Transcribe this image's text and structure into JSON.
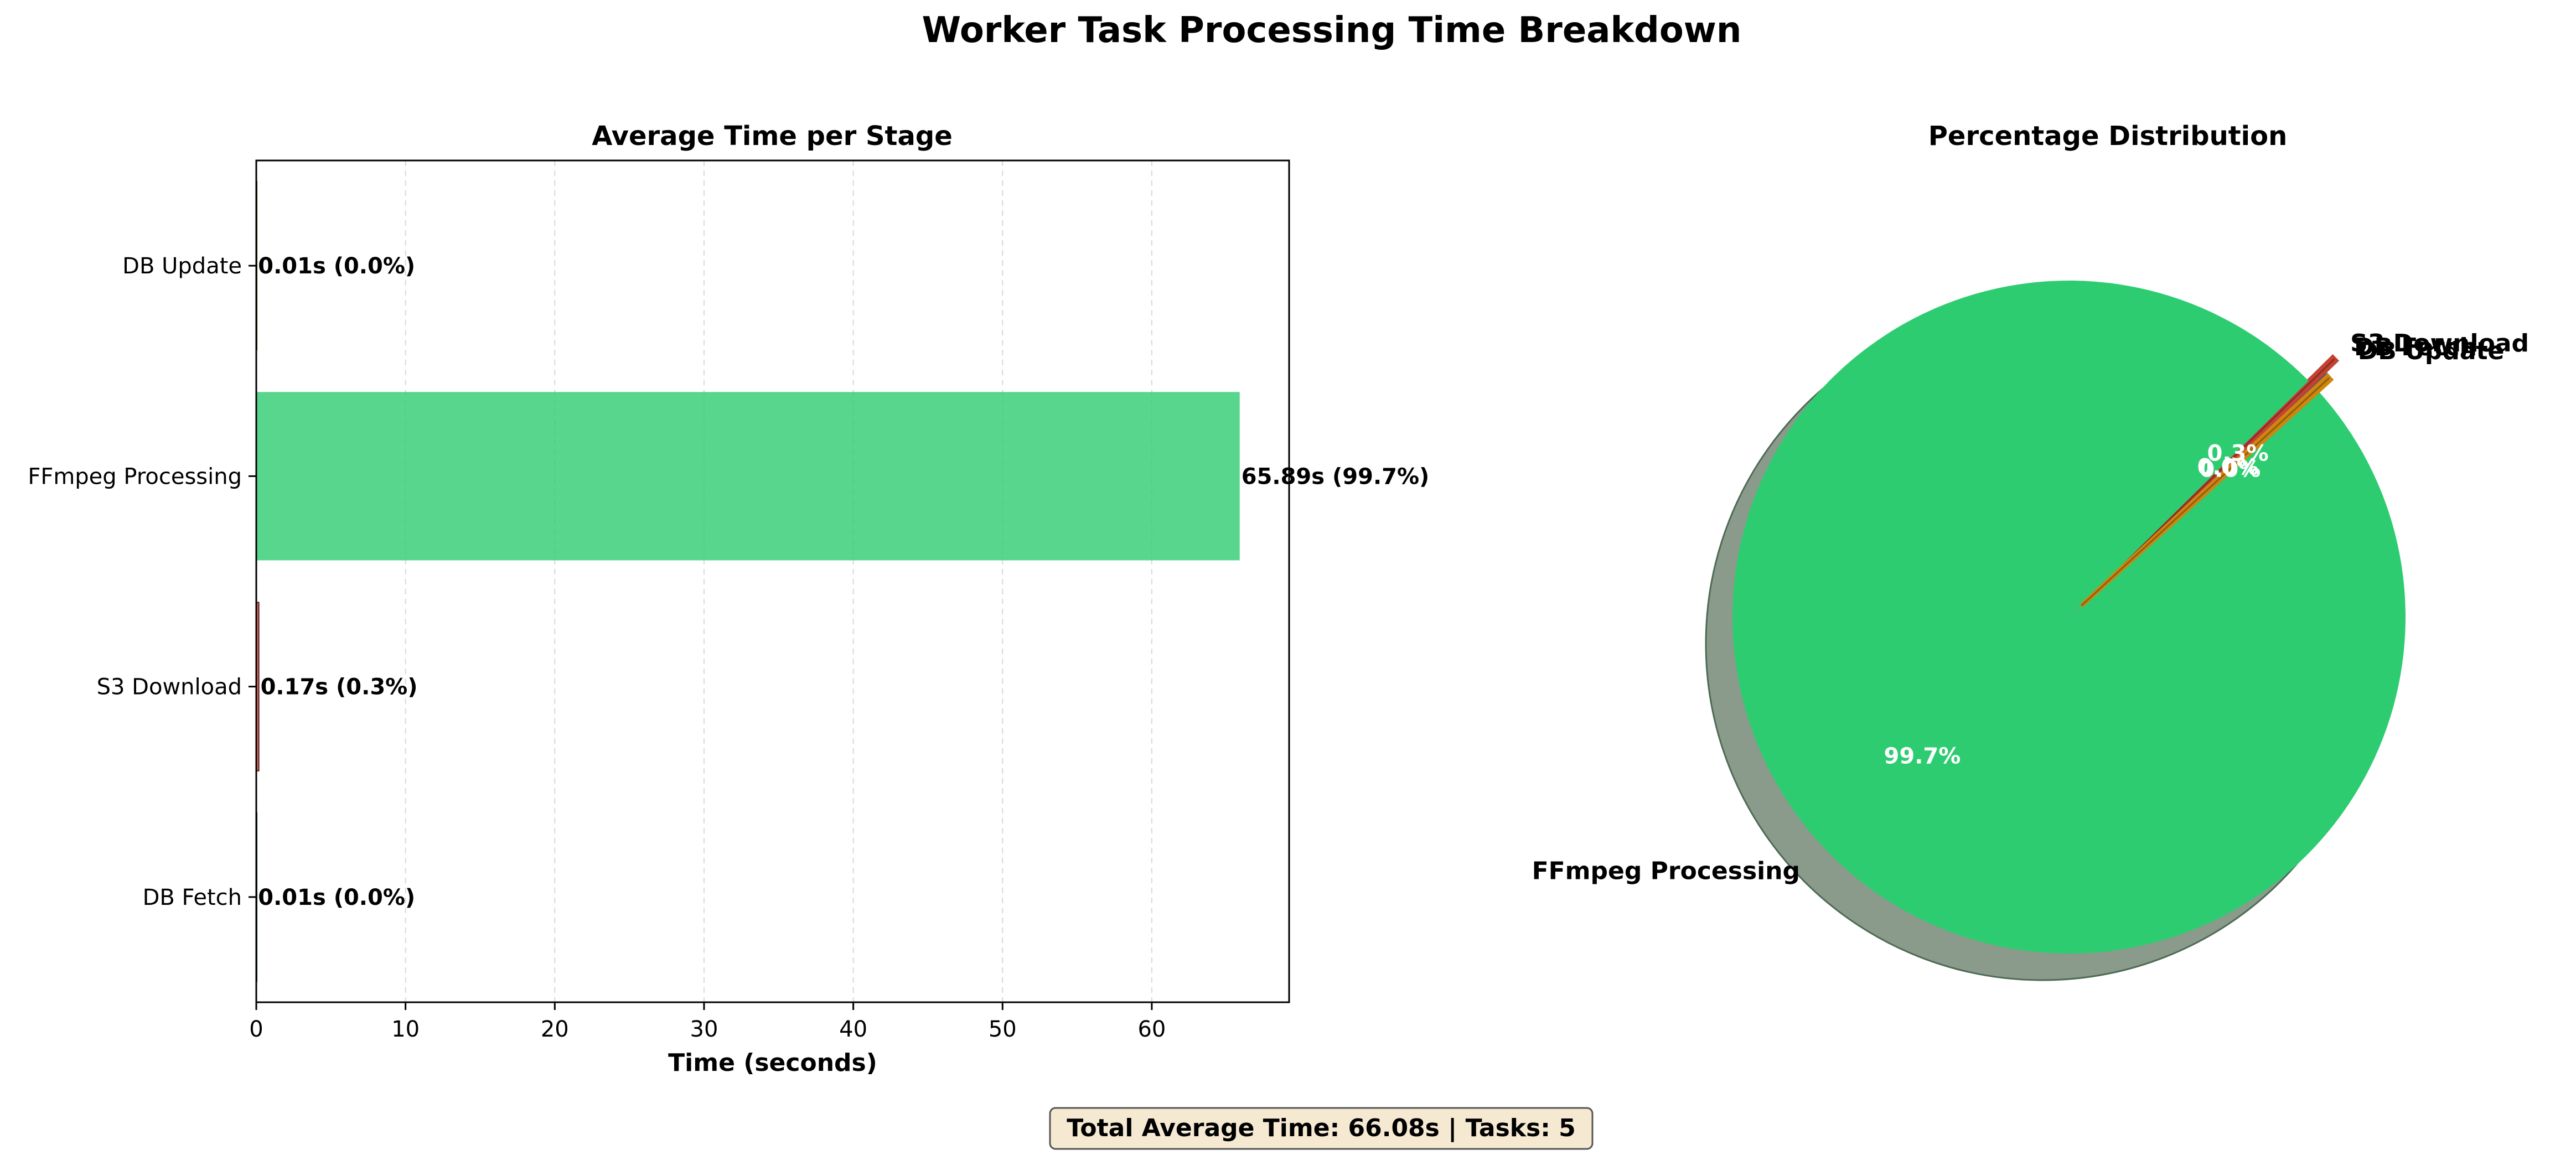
{
  "figure": {
    "title": "Worker Task Processing Time Breakdown",
    "footer": "Total Average Time: 66.08s | Tasks: 5"
  },
  "chart_data": [
    {
      "type": "bar",
      "orientation": "horizontal",
      "title": "Average Time per Stage",
      "xlabel": "Time (seconds)",
      "ylabel": "",
      "xlim": [
        0,
        69.2
      ],
      "xticks": [
        0,
        10,
        20,
        30,
        40,
        50,
        60
      ],
      "grid": "x-dashed",
      "categories": [
        "DB Fetch",
        "S3 Download",
        "FFmpeg Processing",
        "DB Update"
      ],
      "values": [
        0.01,
        0.17,
        65.89,
        0.01
      ],
      "data_labels": [
        "0.01s (0.0%)",
        "0.17s (0.3%)",
        "65.89s (99.7%)",
        "0.01s (0.0%)"
      ],
      "colors": [
        "#3498db",
        "#e74c3c",
        "#2ecc71",
        "#f39c12"
      ]
    },
    {
      "type": "pie",
      "title": "Percentage Distribution",
      "categories": [
        "DB Fetch",
        "S3 Download",
        "FFmpeg Processing",
        "DB Update"
      ],
      "values": [
        0.0,
        0.3,
        99.7,
        0.0
      ],
      "data_labels": [
        "0.0%",
        "0.3%",
        "99.7%",
        "0.0%"
      ],
      "colors": [
        "#3498db",
        "#e74c3c",
        "#2ecc71",
        "#f39c12"
      ],
      "shadow": true
    }
  ]
}
